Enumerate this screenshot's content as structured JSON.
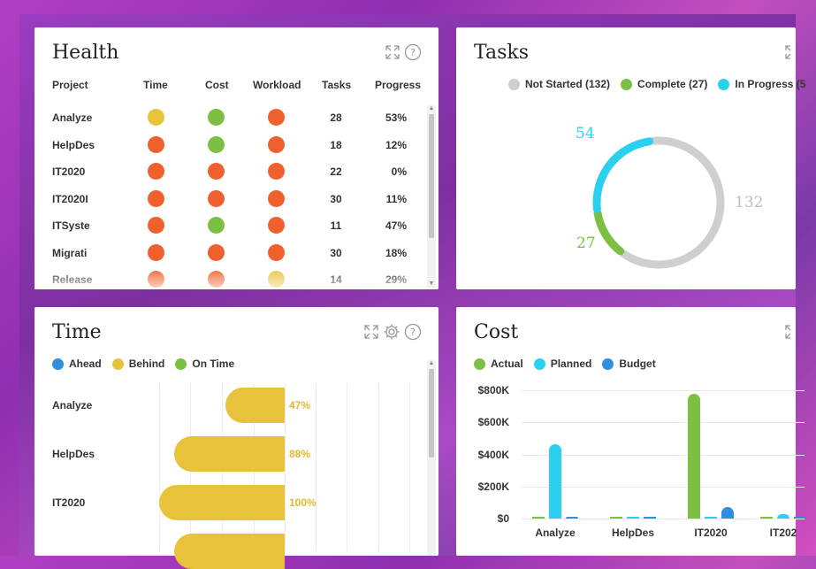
{
  "colors": {
    "red": "#f0602e",
    "green": "#7cc043",
    "yellow": "#e8c23a",
    "gray": "#cfcfcf",
    "cyan": "#2ad0f0",
    "blue": "#2f8ee0"
  },
  "health": {
    "title": "Health",
    "headers": [
      "Project",
      "Time",
      "Cost",
      "Workload",
      "Tasks",
      "Progress"
    ],
    "rows": [
      {
        "name": "Analyze",
        "time": "yellow",
        "cost": "green",
        "workload": "red",
        "tasks": "28",
        "progress": "53%"
      },
      {
        "name": "HelpDes",
        "time": "red",
        "cost": "green",
        "workload": "red",
        "tasks": "18",
        "progress": "12%"
      },
      {
        "name": "IT2020",
        "time": "red",
        "cost": "red",
        "workload": "red",
        "tasks": "22",
        "progress": "0%"
      },
      {
        "name": "IT2020I",
        "time": "red",
        "cost": "red",
        "workload": "red",
        "tasks": "30",
        "progress": "11%"
      },
      {
        "name": "ITSyste",
        "time": "red",
        "cost": "green",
        "workload": "red",
        "tasks": "11",
        "progress": "47%"
      },
      {
        "name": "Migrati",
        "time": "red",
        "cost": "red",
        "workload": "red",
        "tasks": "30",
        "progress": "18%"
      },
      {
        "name": "Release",
        "time": "red",
        "cost": "red",
        "workload": "yellow",
        "tasks": "14",
        "progress": "29%"
      }
    ]
  },
  "tasks": {
    "title": "Tasks",
    "legend": [
      {
        "label": "Not Started (132)",
        "color": "#cfcfcf"
      },
      {
        "label": "Complete (27)",
        "color": "#7cc043"
      },
      {
        "label": "In Progress (5",
        "color": "#2ad0f0"
      }
    ],
    "chart_data": {
      "type": "pie",
      "categories": [
        "Not Started",
        "Complete",
        "In Progress"
      ],
      "values": [
        132,
        27,
        54
      ],
      "labels": [
        "132",
        "27",
        "54"
      ]
    }
  },
  "time": {
    "title": "Time",
    "legend": [
      {
        "label": "Ahead",
        "color": "#2f8ee0"
      },
      {
        "label": "Behind",
        "color": "#e8c23a"
      },
      {
        "label": "On Time",
        "color": "#7cc043"
      }
    ],
    "chart_data": {
      "type": "bar",
      "categories": [
        "Analyze",
        "HelpDes",
        "IT2020"
      ],
      "series": [
        {
          "name": "Behind",
          "values": [
            47,
            88,
            100
          ]
        }
      ],
      "value_labels": [
        "47%",
        "88%",
        "100%"
      ]
    }
  },
  "cost": {
    "title": "Cost",
    "legend": [
      {
        "label": "Actual",
        "color": "#7cc043"
      },
      {
        "label": "Planned",
        "color": "#2ad0f0"
      },
      {
        "label": "Budget",
        "color": "#2f8ee0"
      }
    ],
    "chart_data": {
      "type": "bar",
      "categories": [
        "Analyze",
        "HelpDes",
        "IT2020",
        "IT202"
      ],
      "series": [
        {
          "name": "Actual",
          "values": [
            0,
            0,
            780000,
            0
          ]
        },
        {
          "name": "Planned",
          "values": [
            465000,
            0,
            0,
            30000
          ]
        },
        {
          "name": "Budget",
          "values": [
            10000,
            0,
            70000,
            0
          ]
        }
      ],
      "yticks": [
        "$800K",
        "$600K",
        "$400K",
        "$200K",
        "$0"
      ],
      "ylim": [
        0,
        800000
      ]
    }
  }
}
